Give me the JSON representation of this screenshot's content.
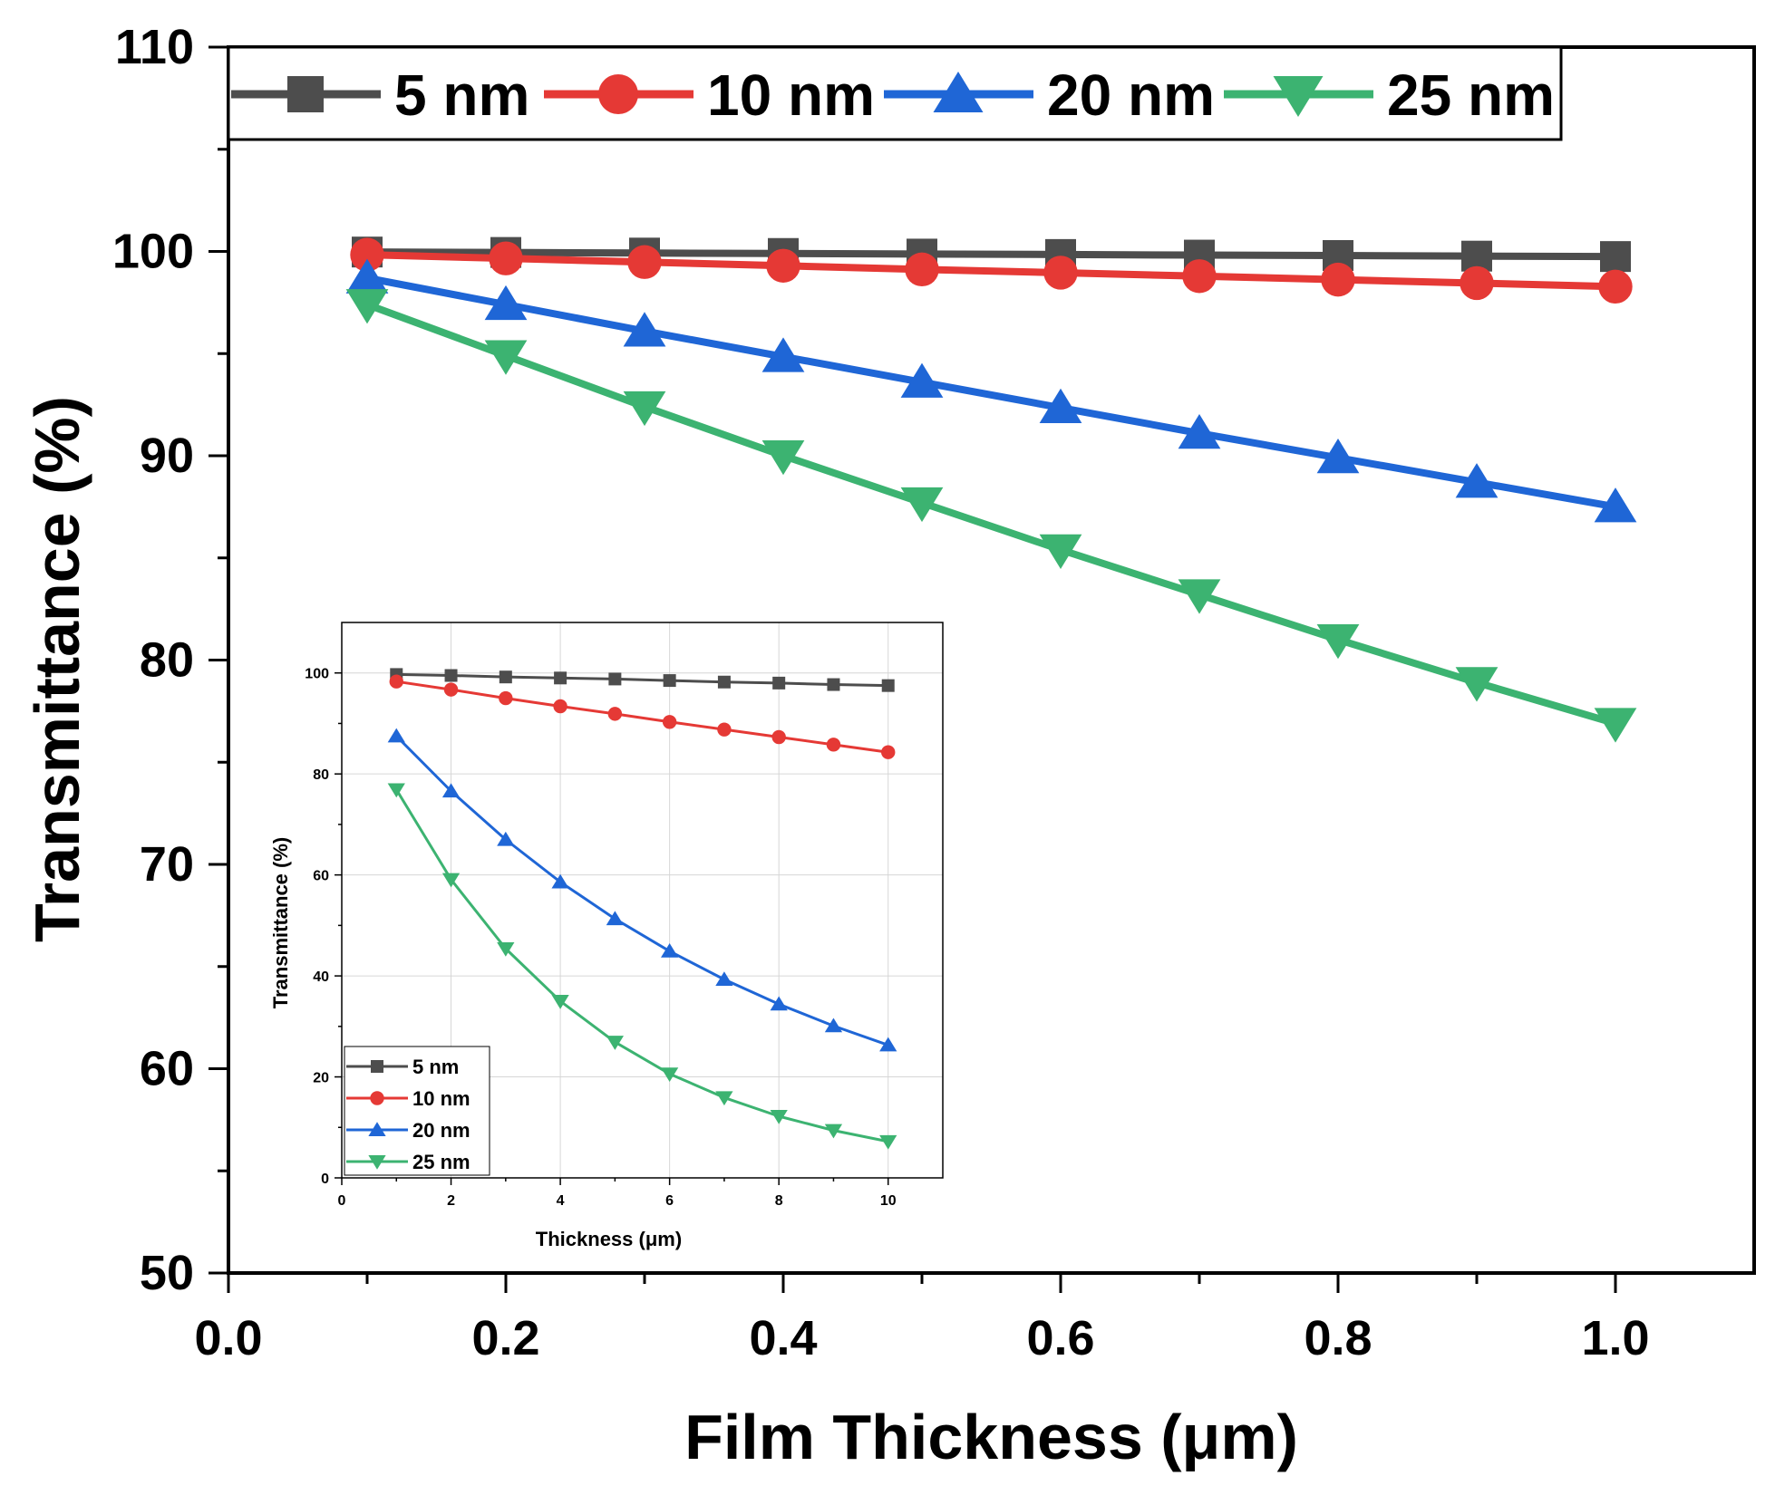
{
  "chart_data": [
    {
      "id": "main",
      "type": "line",
      "title": "",
      "xlabel": "Film Thickness (μm)",
      "ylabel": "Transmittance (%)",
      "xlim": [
        0.0,
        1.1
      ],
      "ylim": [
        50,
        110
      ],
      "xticks": [
        0.0,
        0.2,
        0.4,
        0.6,
        0.8,
        1.0
      ],
      "xtick_labels": [
        "0.0",
        "0.2",
        "0.4",
        "0.6",
        "0.8",
        "1.0"
      ],
      "yticks": [
        50,
        60,
        70,
        80,
        90,
        100,
        110
      ],
      "ytick_labels": [
        "50",
        "60",
        "70",
        "80",
        "90",
        "100",
        "110"
      ],
      "grid": false,
      "legend_position": "top",
      "x": [
        0.1,
        0.2,
        0.3,
        0.4,
        0.5,
        0.6,
        0.7,
        0.8,
        0.9,
        1.0
      ],
      "series": [
        {
          "name": "5 nm",
          "color": "#4d4d4d",
          "marker": "square",
          "values": [
            99.97,
            99.95,
            99.92,
            99.9,
            99.87,
            99.85,
            99.82,
            99.8,
            99.77,
            99.75
          ]
        },
        {
          "name": "10 nm",
          "color": "#e53935",
          "marker": "circle",
          "values": [
            99.84,
            99.66,
            99.48,
            99.3,
            99.12,
            98.96,
            98.79,
            98.62,
            98.45,
            98.28
          ]
        },
        {
          "name": "20 nm",
          "color": "#1f66d6",
          "marker": "triangle-up",
          "values": [
            98.7,
            97.4,
            96.1,
            94.85,
            93.6,
            92.35,
            91.1,
            89.9,
            88.7,
            87.5
          ]
        },
        {
          "name": "25 nm",
          "color": "#3cb371",
          "marker": "triangle-down",
          "values": [
            97.4,
            94.9,
            92.4,
            90.0,
            87.7,
            85.4,
            83.2,
            81.0,
            78.9,
            76.9
          ]
        }
      ]
    },
    {
      "id": "inset",
      "type": "line",
      "title": "",
      "xlabel": "Thickness (μm)",
      "ylabel": "Transmittance (%)",
      "xlim": [
        0,
        11
      ],
      "ylim": [
        0,
        110
      ],
      "xticks": [
        0,
        2,
        4,
        6,
        8,
        10
      ],
      "xtick_labels": [
        "0",
        "2",
        "4",
        "6",
        "8",
        "10"
      ],
      "yticks": [
        0,
        20,
        40,
        60,
        80,
        100
      ],
      "ytick_labels": [
        "0",
        "20",
        "40",
        "60",
        "80",
        "100"
      ],
      "grid": true,
      "legend_position": "bottom-left",
      "x": [
        1,
        2,
        3,
        4,
        5,
        6,
        7,
        8,
        9,
        10
      ],
      "series": [
        {
          "name": "5 nm",
          "color": "#4d4d4d",
          "marker": "square",
          "values": [
            99.7,
            99.5,
            99.2,
            99.0,
            98.8,
            98.5,
            98.2,
            98.0,
            97.7,
            97.5
          ]
        },
        {
          "name": "10 nm",
          "color": "#e53935",
          "marker": "circle",
          "values": [
            98.3,
            96.7,
            95.0,
            93.4,
            91.9,
            90.3,
            88.8,
            87.3,
            85.8,
            84.3
          ]
        },
        {
          "name": "20 nm",
          "color": "#1f66d6",
          "marker": "triangle-up",
          "values": [
            87.5,
            76.6,
            67.0,
            58.6,
            51.3,
            44.9,
            39.3,
            34.4,
            30.1,
            26.3
          ]
        },
        {
          "name": "25 nm",
          "color": "#3cb371",
          "marker": "triangle-down",
          "values": [
            76.9,
            59.1,
            45.4,
            35.0,
            26.9,
            20.6,
            15.9,
            12.2,
            9.4,
            7.2
          ]
        }
      ]
    }
  ]
}
